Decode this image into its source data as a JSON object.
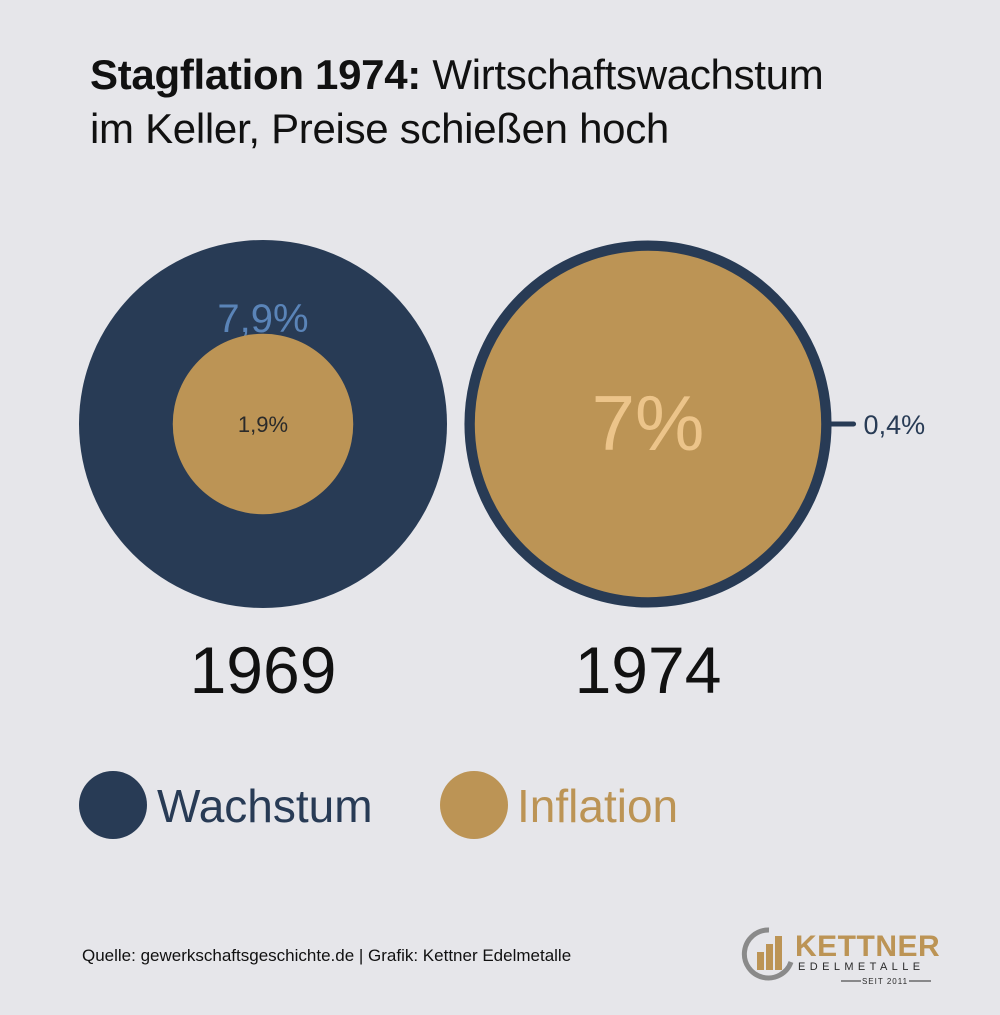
{
  "title": {
    "bold": "Stagflation 1974:",
    "line1_rest": "Wirtschaftswachstum",
    "line2": "im Keller, Preise schießen hoch"
  },
  "colors": {
    "wachstum": "#283b55",
    "inflation": "#bc9455",
    "wachstum_label": "#5a84b8",
    "inflation_label_light": "#ecc48a",
    "background": "#e6e6ea"
  },
  "chart_data": {
    "type": "bubble",
    "title": "Stagflation 1974: Wirtschaftswachstum im Keller, Preise schießen hoch",
    "years": [
      {
        "year": "1969",
        "wachstum": 7.9,
        "wachstum_label": "7,9%",
        "inflation": 1.9,
        "inflation_label": "1,9%"
      },
      {
        "year": "1974",
        "wachstum": 0.4,
        "wachstum_label": "0,4%",
        "inflation": 7.0,
        "inflation_label": "7%"
      }
    ],
    "legend": [
      {
        "name": "Wachstum",
        "color": "#283b55"
      },
      {
        "name": "Inflation",
        "color": "#bc9455"
      }
    ],
    "legend_position": "bottom-left"
  },
  "footer": {
    "source": "Quelle: gewerkschaftsgeschichte.de | Grafik: Kettner Edelmetalle"
  },
  "logo": {
    "name": "KETTNER",
    "sub": "EDELMETALLE",
    "since": "SEIT 2011"
  }
}
